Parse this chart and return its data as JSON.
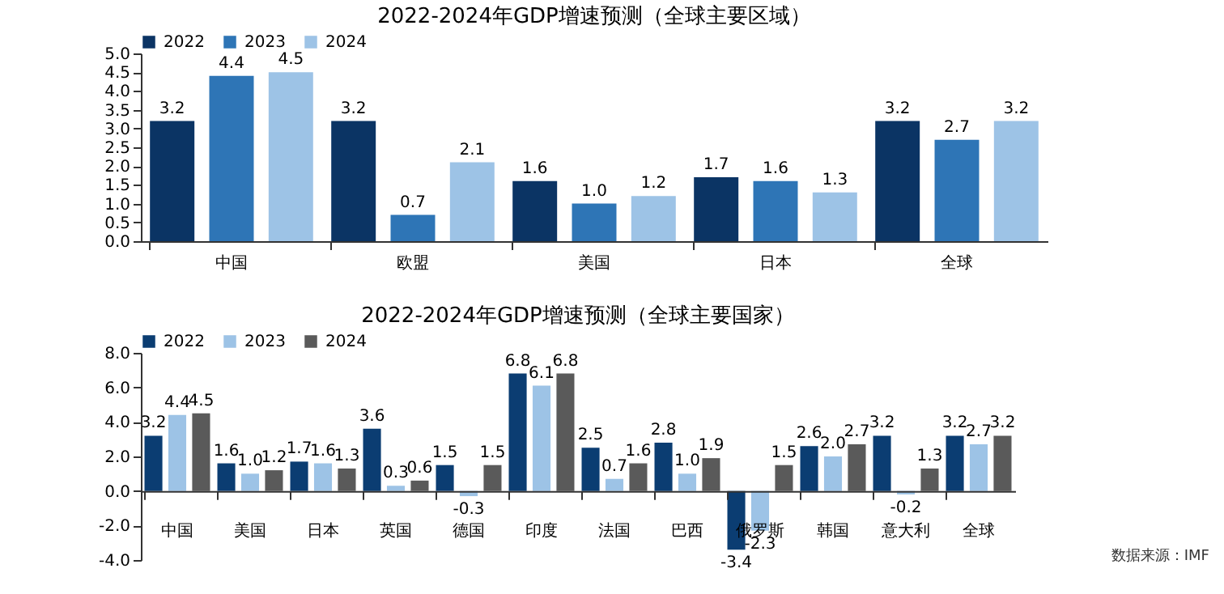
{
  "chart_data": [
    {
      "type": "bar",
      "title": "2022-2024年GDP增速预测（全球主要区域）",
      "categories": [
        "中国",
        "欧盟",
        "美国",
        "日本",
        "全球"
      ],
      "series": [
        {
          "name": "2022",
          "color": "#0b3464",
          "values": [
            3.2,
            3.2,
            1.6,
            1.7,
            3.2
          ]
        },
        {
          "name": "2023",
          "color": "#2e75b6",
          "values": [
            4.4,
            0.7,
            1.0,
            1.6,
            2.7
          ],
          "value_labels": [
            "4.4",
            "0.7",
            "1.0",
            "1.6",
            "2.7"
          ]
        },
        {
          "name": "2024",
          "color": "#9dc3e6",
          "values": [
            4.5,
            2.1,
            1.2,
            1.3,
            3.2
          ]
        }
      ],
      "ylim": [
        0,
        5
      ],
      "yticks": [
        {
          "value": 0,
          "label": "0.0"
        },
        {
          "value": 0.5,
          "label": "0.5"
        },
        {
          "value": 1,
          "label": "1.0"
        },
        {
          "value": 1.5,
          "label": "1.5"
        },
        {
          "value": 2,
          "label": "2.0"
        },
        {
          "value": 2.5,
          "label": "2.5"
        },
        {
          "value": 3,
          "label": "3.0"
        },
        {
          "value": 3.5,
          "label": "3.5"
        },
        {
          "value": 4,
          "label": "4.0"
        },
        {
          "value": 4.5,
          "label": "4.5"
        },
        {
          "value": 5,
          "label": "5.0"
        }
      ],
      "data_labels": true,
      "legend": "top",
      "grid": false
    },
    {
      "type": "bar",
      "title": "2022-2024年GDP增速预测（全球主要国家）",
      "categories": [
        "中国",
        "美国",
        "日本",
        "英国",
        "德国",
        "印度",
        "法国",
        "巴西",
        "俄罗斯",
        "韩国",
        "意大利",
        "全球"
      ],
      "series": [
        {
          "name": "2022",
          "color": "#0b3d72",
          "values": [
            3.2,
            1.6,
            1.7,
            3.6,
            1.5,
            6.8,
            2.5,
            2.8,
            -3.4,
            2.6,
            3.2,
            3.2
          ]
        },
        {
          "name": "2023",
          "color": "#9dc3e6",
          "values": [
            4.4,
            1.0,
            1.6,
            0.3,
            -0.3,
            6.1,
            0.7,
            1.0,
            -2.3,
            2.0,
            -0.2,
            2.7
          ],
          "value_labels": [
            "4.4",
            "1.0",
            "1.6",
            "0.3",
            "-0.3",
            "6.1",
            "0.7",
            "1.0",
            "-2.3",
            "2.0",
            "-0.2",
            "2.7"
          ]
        },
        {
          "name": "2024",
          "color": "#5a5a5a",
          "values": [
            4.5,
            1.2,
            1.3,
            0.6,
            1.5,
            6.8,
            1.6,
            1.9,
            1.5,
            2.7,
            1.3,
            3.2
          ]
        }
      ],
      "ylim": [
        -4,
        8
      ],
      "yticks": [
        {
          "value": -4,
          "label": "-4.0"
        },
        {
          "value": -2,
          "label": "-2.0"
        },
        {
          "value": 0,
          "label": "0.0"
        },
        {
          "value": 2,
          "label": "2.0"
        },
        {
          "value": 4,
          "label": "4.0"
        },
        {
          "value": 6,
          "label": "6.0"
        },
        {
          "value": 8,
          "label": "8.0"
        }
      ],
      "data_labels": true,
      "legend": "top",
      "grid": false,
      "annotations": [
        "数据来源：IMF"
      ]
    }
  ]
}
